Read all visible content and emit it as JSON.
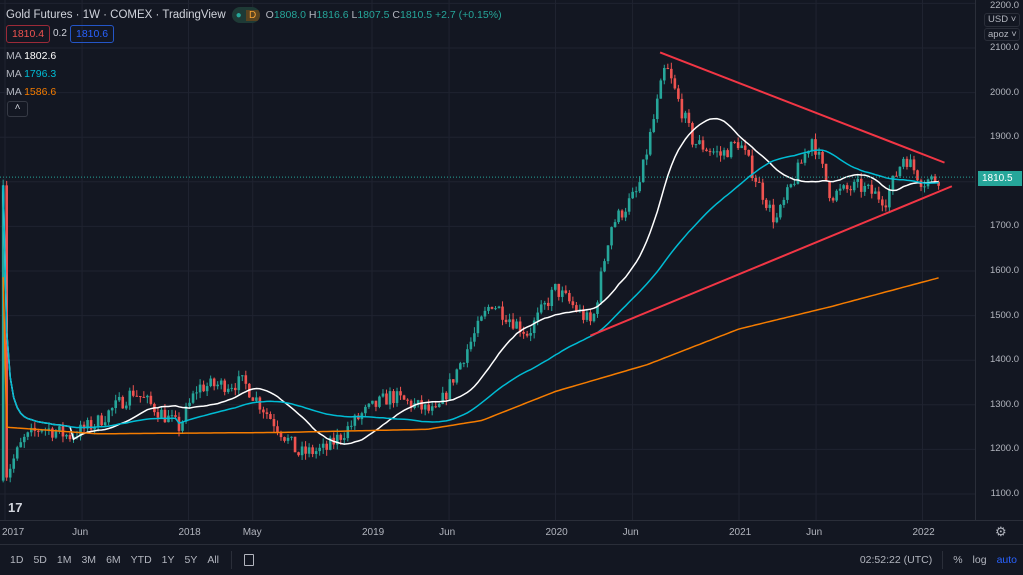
{
  "legend": {
    "symbol": "Gold Futures · 1W · COMEX · TradingView",
    "dot": "●",
    "d_badge": "D",
    "o_label": "O",
    "o": "1808.0",
    "h_label": "H",
    "h": "1816.6",
    "l_label": "L",
    "l": "1807.5",
    "c_label": "C",
    "c": "1810.5",
    "change": "+2.7 (+0.15%)",
    "bid": "1810.4",
    "spread": "0.2",
    "ask": "1810.6",
    "collapse": "˄"
  },
  "mas": [
    {
      "label": "MA",
      "value": "1802.6",
      "color": "#ffffff"
    },
    {
      "label": "MA",
      "value": "1796.3",
      "color": "#00bcd4"
    },
    {
      "label": "MA",
      "value": "1586.6",
      "color": "#f57c00"
    }
  ],
  "price_axis": {
    "currency": "USD ˅",
    "unit": "apoz ˅",
    "ticks": [
      "2200.0",
      "2100.0",
      "2000.0",
      "1900.0",
      "1700.0",
      "1600.0",
      "1500.0",
      "1400.0",
      "1300.0",
      "1200.0",
      "1100.0"
    ],
    "tick_values": [
      2200,
      2100,
      2000,
      1900,
      1700,
      1600,
      1500,
      1400,
      1300,
      1200,
      1100
    ],
    "last_price": "1810.5"
  },
  "time_axis": {
    "labels": [
      "2017",
      "Jun",
      "2018",
      "May",
      "2019",
      "Jun",
      "2020",
      "Jun",
      "2021",
      "Jun",
      "2022"
    ],
    "positions": [
      2017,
      2017.42,
      2018,
      2018.35,
      2019,
      2019.42,
      2020,
      2020.42,
      2021,
      2021.42,
      2022
    ],
    "settings": "⚙"
  },
  "bottom": {
    "ranges": [
      "1D",
      "5D",
      "1M",
      "3M",
      "6M",
      "YTD",
      "1Y",
      "5Y",
      "All"
    ],
    "clock": "02:52:22 (UTC)",
    "percent": "%",
    "log": "log",
    "auto": "auto"
  },
  "colors": {
    "up": "#26a69a",
    "down": "#ef5350",
    "trend": "#f23645",
    "last": "#26a69a"
  },
  "chart_data": {
    "type": "candlestick",
    "title": "Gold Futures 1W COMEX",
    "price_path": [
      [
        2017.0,
        1140
      ],
      [
        2017.1,
        1220
      ],
      [
        2017.2,
        1250
      ],
      [
        2017.35,
        1230
      ],
      [
        2017.5,
        1260
      ],
      [
        2017.7,
        1330
      ],
      [
        2017.95,
        1250
      ],
      [
        2018.05,
        1340
      ],
      [
        2018.3,
        1350
      ],
      [
        2018.6,
        1190
      ],
      [
        2018.75,
        1200
      ],
      [
        2018.95,
        1280
      ],
      [
        2019.1,
        1320
      ],
      [
        2019.35,
        1280
      ],
      [
        2019.5,
        1410
      ],
      [
        2019.65,
        1530
      ],
      [
        2019.85,
        1460
      ],
      [
        2020.0,
        1560
      ],
      [
        2020.2,
        1480
      ],
      [
        2020.3,
        1700
      ],
      [
        2020.45,
        1780
      ],
      [
        2020.6,
        2060
      ],
      [
        2020.75,
        1890
      ],
      [
        2020.9,
        1860
      ],
      [
        2021.0,
        1890
      ],
      [
        2021.2,
        1710
      ],
      [
        2021.4,
        1900
      ],
      [
        2021.5,
        1770
      ],
      [
        2021.65,
        1790
      ],
      [
        2021.8,
        1760
      ],
      [
        2021.9,
        1860
      ],
      [
        2022.0,
        1800
      ],
      [
        2022.1,
        1810
      ]
    ],
    "ma200_path": [
      [
        2017.0,
        1250
      ],
      [
        2017.5,
        1235
      ],
      [
        2018.5,
        1238
      ],
      [
        2019.3,
        1245
      ],
      [
        2019.6,
        1265
      ],
      [
        2020.0,
        1330
      ],
      [
        2020.5,
        1390
      ],
      [
        2021.0,
        1470
      ],
      [
        2021.5,
        1520
      ],
      [
        2022.1,
        1586
      ]
    ],
    "trendlines": [
      {
        "from": [
          2020.57,
          2090
        ],
        "to": [
          2022.12,
          1843
        ]
      },
      {
        "from": [
          2020.19,
          1455
        ],
        "to": [
          2022.16,
          1790
        ]
      }
    ]
  }
}
